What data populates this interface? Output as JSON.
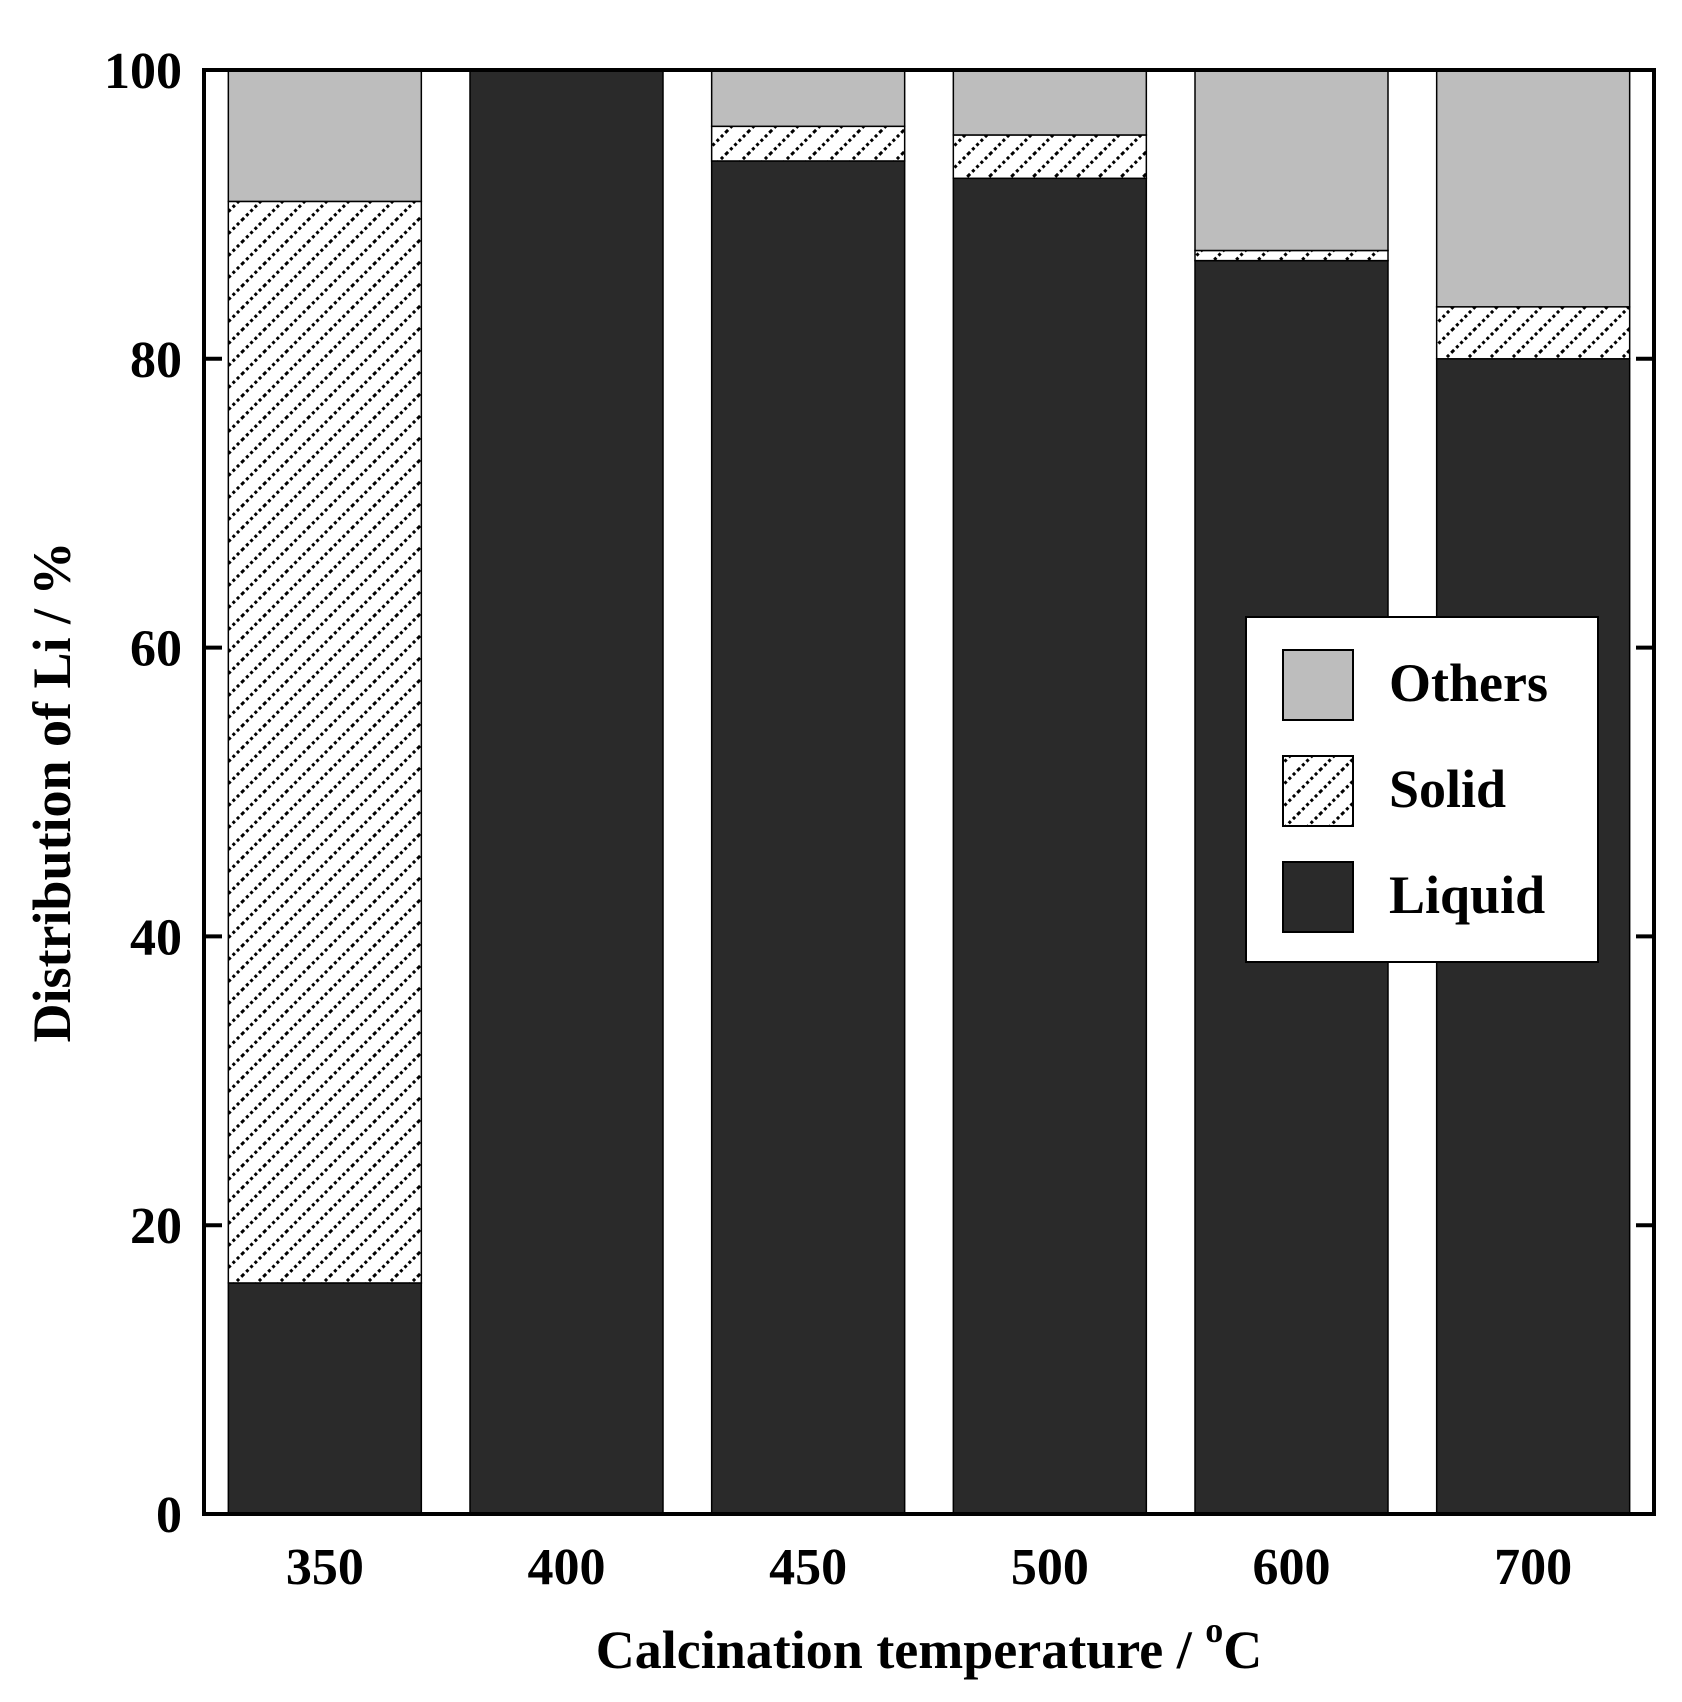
{
  "chart_data": {
    "type": "bar",
    "stacked": true,
    "categories": [
      "350",
      "400",
      "450",
      "500",
      "600",
      "700"
    ],
    "series": [
      {
        "name": "Liquid",
        "values": [
          16.0,
          100.0,
          93.7,
          92.5,
          86.8,
          80.0
        ],
        "color": "#2a2a2a",
        "pattern": "solid"
      },
      {
        "name": "Solid",
        "values": [
          74.9,
          0.0,
          2.4,
          3.0,
          0.7,
          3.6
        ],
        "color": "#ffffff",
        "pattern": "hatch"
      },
      {
        "name": "Others",
        "values": [
          9.1,
          0.0,
          3.9,
          4.5,
          12.5,
          16.4
        ],
        "color": "#bdbdbd",
        "pattern": "solid"
      }
    ],
    "xlabel_main": "Calcination temperature /  ",
    "xlabel_sup": "o",
    "xlabel_end": "C",
    "ylabel": "Distribution of Li / %",
    "ylim": [
      0,
      100
    ],
    "yticks": [
      "0",
      "20",
      "40",
      "60",
      "80",
      "100"
    ],
    "legend": {
      "position": "right",
      "entries": [
        "Others",
        "Solid",
        "Liquid"
      ]
    },
    "grid": false
  }
}
